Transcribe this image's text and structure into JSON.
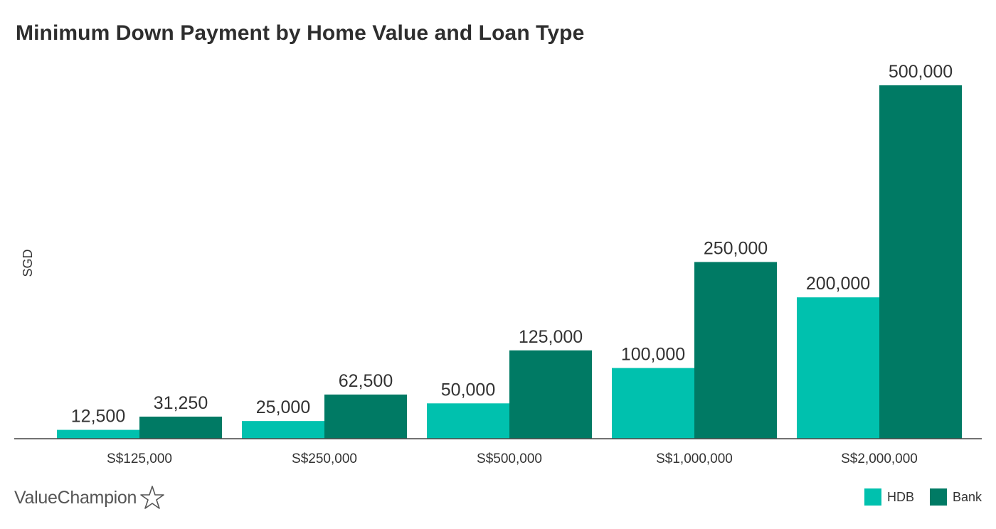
{
  "chart_data": {
    "type": "bar",
    "title": "Minimum Down Payment by Home Value and Loan Type",
    "ylabel": "SGD",
    "xlabel": "",
    "categories": [
      "S$125,000",
      "S$250,000",
      "S$500,000",
      "S$1,000,000",
      "S$2,000,000"
    ],
    "series": [
      {
        "name": "HDB",
        "color": "#00c1ae",
        "values": [
          12500,
          25000,
          50000,
          100000,
          200000
        ],
        "labels": [
          "12,500",
          "25,000",
          "50,000",
          "100,000",
          "200,000"
        ]
      },
      {
        "name": "Bank",
        "color": "#007a64",
        "values": [
          31250,
          62500,
          125000,
          250000,
          500000
        ],
        "labels": [
          "31,250",
          "62,500",
          "125,000",
          "250,000",
          "500,000"
        ]
      }
    ],
    "ylim": [
      0,
      500000
    ],
    "grid": false,
    "legend_position": "bottom-right"
  },
  "brand": {
    "name": "ValueChampion",
    "icon": "star-outline-icon"
  }
}
